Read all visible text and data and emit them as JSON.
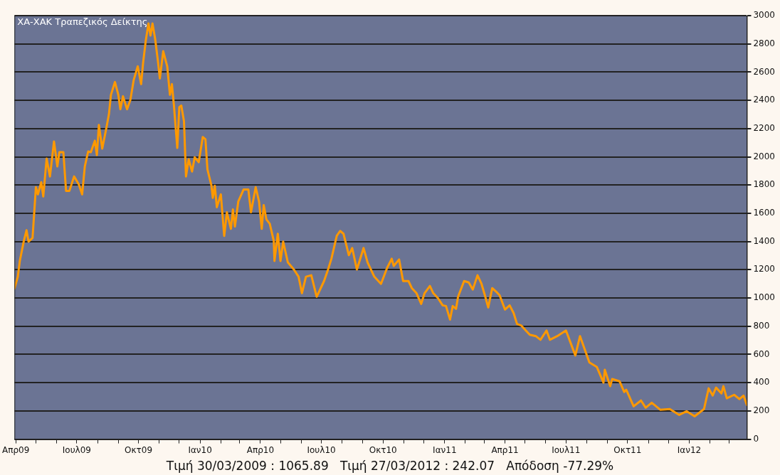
{
  "chart_data": {
    "type": "line",
    "title": "ΧΑ-ΧΑΚ Τραπεζικός Δείκτης",
    "annotations": [
      "Τιμή 30/03/2009 : 1065.89   Τιμή 27/03/2012 : 242.07   Απόδοση -77.29%"
    ],
    "x": [
      "2009-03-30",
      "2009-04-04",
      "2009-04-07",
      "2009-04-13",
      "2009-04-17",
      "2009-04-20",
      "2009-04-26",
      "2009-05-01",
      "2009-05-04",
      "2009-05-09",
      "2009-05-12",
      "2009-05-17",
      "2009-05-22",
      "2009-05-28",
      "2009-06-02",
      "2009-06-05",
      "2009-06-11",
      "2009-06-15",
      "2009-06-20",
      "2009-06-27",
      "2009-07-04",
      "2009-07-09",
      "2009-07-13",
      "2009-07-18",
      "2009-07-22",
      "2009-07-28",
      "2009-07-31",
      "2009-08-03",
      "2009-08-08",
      "2009-08-14",
      "2009-08-18",
      "2009-08-21",
      "2009-08-27",
      "2009-09-01",
      "2009-09-04",
      "2009-09-08",
      "2009-09-14",
      "2009-09-19",
      "2009-09-24",
      "2009-09-30",
      "2009-10-05",
      "2009-10-08",
      "2009-10-12",
      "2009-10-16",
      "2009-10-19",
      "2009-10-22",
      "2009-10-26",
      "2009-10-30",
      "2009-11-02",
      "2009-11-07",
      "2009-11-13",
      "2009-11-17",
      "2009-11-20",
      "2009-11-23",
      "2009-11-28",
      "2009-12-01",
      "2009-12-04",
      "2009-12-08",
      "2009-12-11",
      "2009-12-15",
      "2009-12-20",
      "2009-12-24",
      "2009-12-30",
      "2010-01-05",
      "2010-01-09",
      "2010-01-12",
      "2010-01-18",
      "2010-01-20",
      "2010-01-23",
      "2010-01-26",
      "2010-02-01",
      "2010-02-06",
      "2010-02-10",
      "2010-02-16",
      "2010-02-19",
      "2010-02-22",
      "2010-02-27",
      "2010-03-07",
      "2010-03-14",
      "2010-03-18",
      "2010-03-25",
      "2010-03-30",
      "2010-04-03",
      "2010-04-06",
      "2010-04-10",
      "2010-04-15",
      "2010-04-21",
      "2010-04-22",
      "2010-04-27",
      "2010-05-01",
      "2010-05-05",
      "2010-05-12",
      "2010-05-21",
      "2010-05-28",
      "2010-06-02",
      "2010-06-08",
      "2010-06-16",
      "2010-06-24",
      "2010-07-05",
      "2010-07-11",
      "2010-07-16",
      "2010-07-24",
      "2010-07-29",
      "2010-08-03",
      "2010-08-11",
      "2010-08-16",
      "2010-08-23",
      "2010-09-02",
      "2010-09-08",
      "2010-09-18",
      "2010-09-28",
      "2010-10-07",
      "2010-10-14",
      "2010-10-17",
      "2010-10-25",
      "2010-10-31",
      "2010-11-08",
      "2010-11-13",
      "2010-11-20",
      "2010-11-27",
      "2010-12-02",
      "2010-12-10",
      "2010-12-15",
      "2010-12-22",
      "2010-12-29",
      "2011-01-03",
      "2011-01-09",
      "2011-01-13",
      "2011-01-18",
      "2011-01-21",
      "2011-01-30",
      "2011-02-06",
      "2011-02-12",
      "2011-02-19",
      "2011-02-25",
      "2011-03-02",
      "2011-03-07",
      "2011-03-13",
      "2011-03-19",
      "2011-03-24",
      "2011-04-01",
      "2011-04-08",
      "2011-04-14",
      "2011-04-19",
      "2011-04-25",
      "2011-05-03",
      "2011-05-08",
      "2011-05-17",
      "2011-05-24",
      "2011-06-02",
      "2011-06-07",
      "2011-06-18",
      "2011-07-01",
      "2011-07-15",
      "2011-07-22",
      "2011-08-05",
      "2011-08-16",
      "2011-08-26",
      "2011-08-28",
      "2011-09-05",
      "2011-09-08",
      "2011-09-19",
      "2011-09-26",
      "2011-09-29",
      "2011-10-10",
      "2011-10-21",
      "2011-10-28",
      "2011-11-06",
      "2011-11-19",
      "2011-12-03",
      "2011-12-17",
      "2011-12-28",
      "2012-01-09",
      "2012-01-23",
      "2012-01-30",
      "2012-02-05",
      "2012-02-10",
      "2012-02-18",
      "2012-02-21",
      "2012-02-26",
      "2012-03-08",
      "2012-03-16",
      "2012-03-22",
      "2012-03-27"
    ],
    "series": [
      {
        "color": "#ff9900",
        "values": [
          1066,
          1151,
          1262,
          1404,
          1480,
          1399,
          1425,
          1785,
          1734,
          1820,
          1719,
          1987,
          1861,
          2109,
          1932,
          2033,
          2033,
          1759,
          1759,
          1861,
          1805,
          1734,
          1932,
          2038,
          2033,
          2114,
          2013,
          2226,
          2058,
          2200,
          2302,
          2439,
          2530,
          2439,
          2337,
          2429,
          2337,
          2403,
          2545,
          2641,
          2515,
          2667,
          2824,
          2945,
          2859,
          2945,
          2834,
          2682,
          2555,
          2748,
          2641,
          2439,
          2515,
          2363,
          2063,
          2352,
          2363,
          2251,
          1861,
          1983,
          1896,
          1997,
          1962,
          2140,
          2124,
          1911,
          1795,
          1709,
          1795,
          1643,
          1734,
          1440,
          1607,
          1490,
          1627,
          1506,
          1683,
          1769,
          1769,
          1607,
          1785,
          1683,
          1490,
          1658,
          1556,
          1526,
          1404,
          1262,
          1455,
          1262,
          1399,
          1252,
          1202,
          1151,
          1034,
          1151,
          1161,
          1009,
          1120,
          1202,
          1278,
          1440,
          1475,
          1455,
          1303,
          1354,
          1202,
          1354,
          1252,
          1151,
          1100,
          1212,
          1278,
          1227,
          1273,
          1120,
          1120,
          1070,
          1034,
          958,
          1034,
          1085,
          1034,
          999,
          948,
          943,
          847,
          943,
          923,
          1009,
          1120,
          1110,
          1060,
          1161,
          1100,
          1019,
          933,
          1070,
          1044,
          1019,
          918,
          948,
          892,
          816,
          806,
          765,
          740,
          730,
          704,
          770,
          704,
          730,
          770,
          593,
          730,
          543,
          512,
          400,
          492,
          375,
          426,
          410,
          334,
          350,
          233,
          274,
          223,
          258,
          208,
          213,
          172,
          198,
          162,
          213,
          360,
          309,
          365,
          324,
          375,
          289,
          314,
          284,
          309,
          242
        ]
      }
    ],
    "xlim": [
      "2009-03-30",
      "2012-03-27"
    ],
    "xticks": [
      {
        "value": "2009-04-01",
        "label": "Απρ09"
      },
      {
        "value": "2009-05-01",
        "label": null
      },
      {
        "value": "2009-06-01",
        "label": null
      },
      {
        "value": "2009-07-01",
        "label": "Ιουλ09"
      },
      {
        "value": "2009-08-01",
        "label": null
      },
      {
        "value": "2009-09-01",
        "label": null
      },
      {
        "value": "2009-10-01",
        "label": "Οκτ09"
      },
      {
        "value": "2009-11-01",
        "label": null
      },
      {
        "value": "2009-12-01",
        "label": null
      },
      {
        "value": "2010-01-01",
        "label": "Ιαν10"
      },
      {
        "value": "2010-02-01",
        "label": null
      },
      {
        "value": "2010-03-01",
        "label": null
      },
      {
        "value": "2010-04-01",
        "label": "Απρ10"
      },
      {
        "value": "2010-05-01",
        "label": null
      },
      {
        "value": "2010-06-01",
        "label": null
      },
      {
        "value": "2010-07-01",
        "label": "Ιουλ10"
      },
      {
        "value": "2010-08-01",
        "label": null
      },
      {
        "value": "2010-09-01",
        "label": null
      },
      {
        "value": "2010-10-01",
        "label": "Οκτ10"
      },
      {
        "value": "2010-11-01",
        "label": null
      },
      {
        "value": "2010-12-01",
        "label": null
      },
      {
        "value": "2011-01-01",
        "label": "Ιαν11"
      },
      {
        "value": "2011-02-01",
        "label": null
      },
      {
        "value": "2011-03-01",
        "label": null
      },
      {
        "value": "2011-04-01",
        "label": "Απρ11"
      },
      {
        "value": "2011-05-01",
        "label": null
      },
      {
        "value": "2011-06-01",
        "label": null
      },
      {
        "value": "2011-07-01",
        "label": "Ιουλ11"
      },
      {
        "value": "2011-08-01",
        "label": null
      },
      {
        "value": "2011-09-01",
        "label": null
      },
      {
        "value": "2011-10-01",
        "label": "Οκτ11"
      },
      {
        "value": "2011-11-01",
        "label": null
      },
      {
        "value": "2011-12-01",
        "label": null
      },
      {
        "value": "2012-01-01",
        "label": "Ιαν12"
      },
      {
        "value": "2012-02-01",
        "label": null
      },
      {
        "value": "2012-03-01",
        "label": null
      }
    ],
    "ylim": [
      0,
      3000
    ],
    "yticks": [
      0,
      200,
      400,
      600,
      800,
      1000,
      1200,
      1400,
      1600,
      1800,
      2000,
      2200,
      2400,
      2600,
      2800,
      3000
    ],
    "grid": "y",
    "legend": false,
    "marker": "none",
    "line_style": "solid"
  }
}
